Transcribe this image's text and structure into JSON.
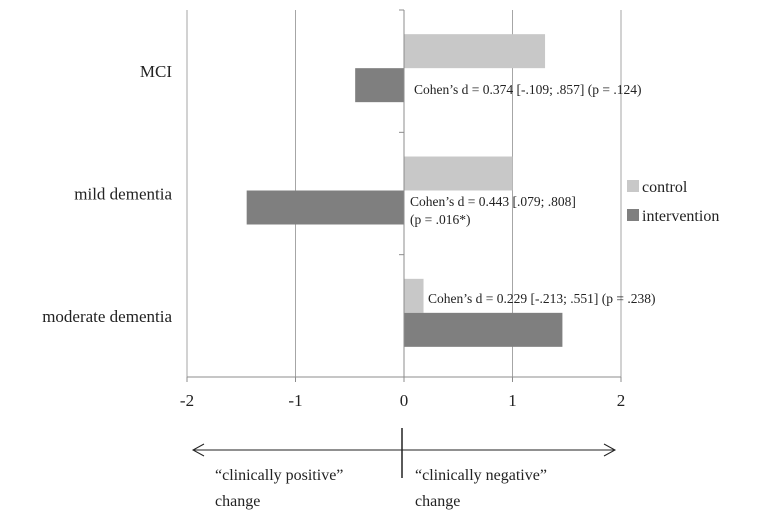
{
  "chart_data": {
    "type": "bar",
    "orientation": "horizontal",
    "categories": [
      "MCI",
      "mild dementia",
      "moderate dementia"
    ],
    "series": [
      {
        "name": "control",
        "values": [
          1.3,
          1.0,
          0.18
        ],
        "color": "#c8c8c8"
      },
      {
        "name": "intervention",
        "values": [
          -0.45,
          -1.45,
          1.46
        ],
        "color": "#7f7f7f"
      }
    ],
    "xlim": [
      -2,
      2
    ],
    "xticks": [
      "-2",
      "-1",
      "0",
      "1",
      "2"
    ],
    "grid": true,
    "legend_position": "right",
    "annotations": [
      {
        "lines": [
          "Cohen’s d = 0.374 [-.109; .857] (p = .124)"
        ]
      },
      {
        "lines": [
          "Cohen’s d = 0.443 [.079; .808]",
          "(p = .016*)"
        ]
      },
      {
        "lines": [
          "Cohen’s d = 0.229 [-.213; .551] (p = .238)"
        ]
      }
    ],
    "direction_labels": {
      "left": [
        "“clinically positive”",
        "change"
      ],
      "right": [
        "“clinically negative”",
        "change"
      ]
    }
  }
}
